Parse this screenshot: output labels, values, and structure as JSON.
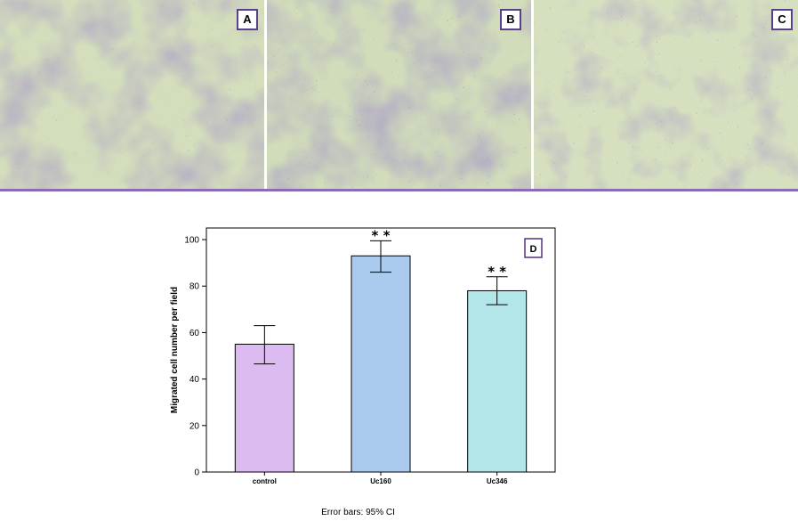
{
  "panels": [
    {
      "label": "A"
    },
    {
      "label": "B"
    },
    {
      "label": "C"
    }
  ],
  "colors": {
    "microscopy_base": "#c9d7a2",
    "stain_purple": "#6b5a9e",
    "rule": "#8a6bb8"
  },
  "chart_data": {
    "type": "bar",
    "panel_label": "D",
    "categories": [
      "control",
      "Uc160",
      "Uc346"
    ],
    "values": [
      55,
      93,
      78
    ],
    "error_low": [
      46.5,
      86,
      72
    ],
    "error_high": [
      63,
      99.5,
      84
    ],
    "significance": [
      "",
      "* *",
      "* *"
    ],
    "colors": [
      "#dcbcf0",
      "#aacbee",
      "#b3e6e8"
    ],
    "ylabel": "Migrated cell number per field",
    "xlabel": "",
    "ylim": [
      0,
      105
    ],
    "yticks": [
      0,
      20,
      40,
      60,
      80,
      100
    ],
    "grid": false,
    "footnote": "Error bars: 95% CI"
  }
}
